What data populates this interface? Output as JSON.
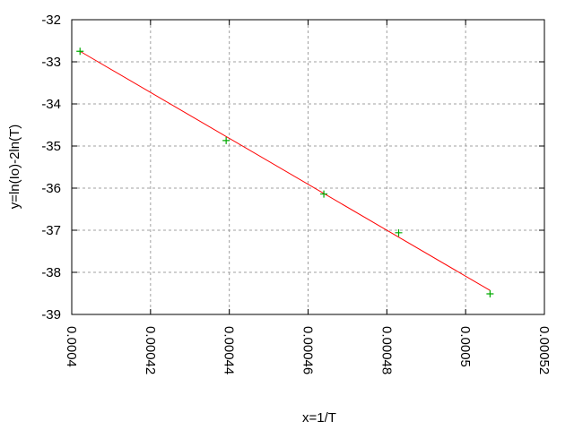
{
  "chart_data": {
    "type": "scatter",
    "title": "",
    "xlabel": "x=1/T",
    "ylabel": "y=ln(Io)-2ln(T)",
    "xlim": [
      0.0004,
      0.00052
    ],
    "ylim": [
      -39,
      -32
    ],
    "xticks": [
      "0.0004",
      "0.00042",
      "0.00044",
      "0.00046",
      "0.00048",
      "0.0005",
      "0.00052"
    ],
    "xtick_values": [
      0.0004,
      0.00042,
      0.00044,
      0.00046,
      0.00048,
      0.0005,
      0.00052
    ],
    "yticks": [
      "-32",
      "-33",
      "-34",
      "-35",
      "-36",
      "-37",
      "-38",
      "-39"
    ],
    "ytick_values": [
      -32,
      -33,
      -34,
      -35,
      -36,
      -37,
      -38,
      -39
    ],
    "grid": true,
    "points": {
      "x": [
        0.0004021,
        0.0004392,
        0.000464,
        0.000483,
        0.0005062
      ],
      "y": [
        -32.75,
        -34.87,
        -36.14,
        -37.06,
        -38.51
      ],
      "color": "#00aa00",
      "marker": "plus"
    },
    "fit_line": {
      "x": [
        0.0004021,
        0.0005062
      ],
      "y": [
        -32.75,
        -38.43
      ],
      "color": "#ff0000"
    }
  }
}
